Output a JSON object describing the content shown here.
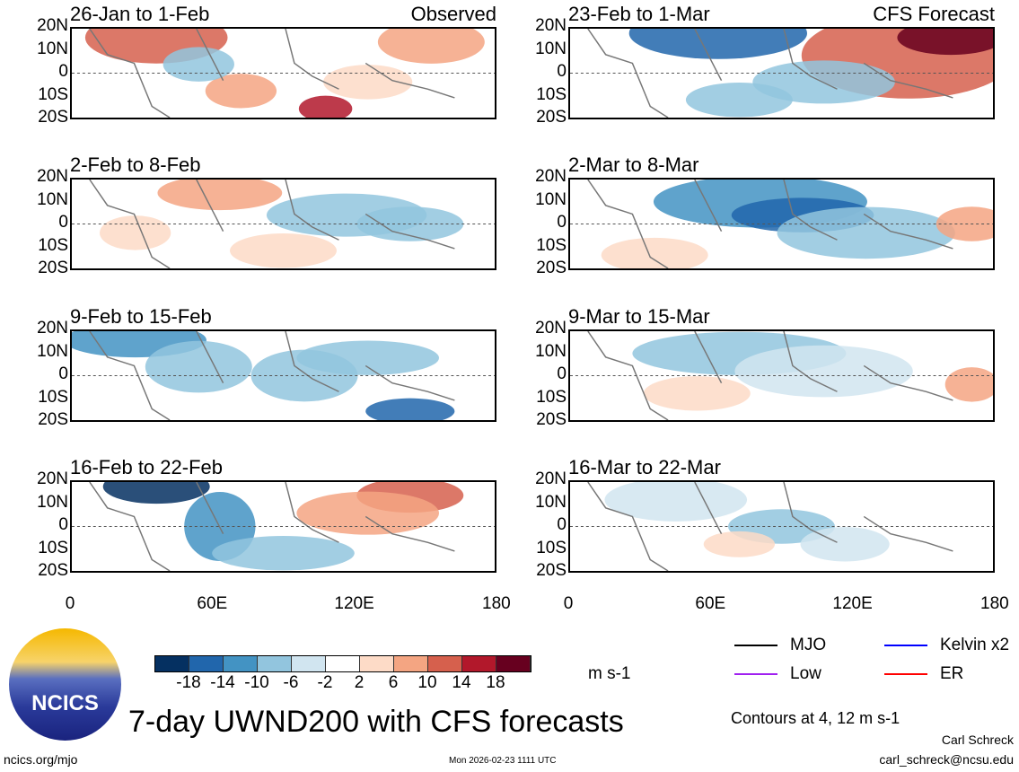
{
  "panels": [
    {
      "title": "26-Jan to 1-Feb",
      "label": "Observed"
    },
    {
      "title": "23-Feb to 1-Mar",
      "label": "CFS Forecast"
    },
    {
      "title": "2-Feb to 8-Feb",
      "label": ""
    },
    {
      "title": "2-Mar to 8-Mar",
      "label": ""
    },
    {
      "title": "9-Feb to 15-Feb",
      "label": ""
    },
    {
      "title": "9-Mar to 15-Mar",
      "label": ""
    },
    {
      "title": "16-Feb to 22-Feb",
      "label": ""
    },
    {
      "title": "16-Mar to 22-Mar",
      "label": ""
    }
  ],
  "lat_labels": [
    "20N",
    "10N",
    "0",
    "10S",
    "20S"
  ],
  "lon_labels": [
    "0",
    "60E",
    "120E",
    "180"
  ],
  "colorbar": {
    "colors": [
      "#053061",
      "#2166ac",
      "#4393c3",
      "#92c5de",
      "#d1e5f0",
      "#ffffff",
      "#fddbc7",
      "#f4a582",
      "#d6604d",
      "#b2182b",
      "#67001f"
    ],
    "ticks": [
      "-18",
      "-14",
      "-10",
      "-6",
      "-2",
      "2",
      "6",
      "10",
      "14",
      "18"
    ],
    "units": "m s-1"
  },
  "legend": [
    {
      "label": "MJO",
      "color": "#000000"
    },
    {
      "label": "Kelvin x2",
      "color": "#0000ff"
    },
    {
      "label": "Low",
      "color": "#a020f0"
    },
    {
      "label": "ER",
      "color": "#ff0000"
    }
  ],
  "contours_note": "Contours at 4, 12 m s-1",
  "logo_text": "NCICS",
  "main_title": "7-day UWND200 with CFS forecasts",
  "url": "ncics.org/mjo",
  "timestamp": "Mon 2026-02-23 1111 UTC",
  "author": "Carl Schreck",
  "email": "carl_schreck@ncsu.edu"
}
